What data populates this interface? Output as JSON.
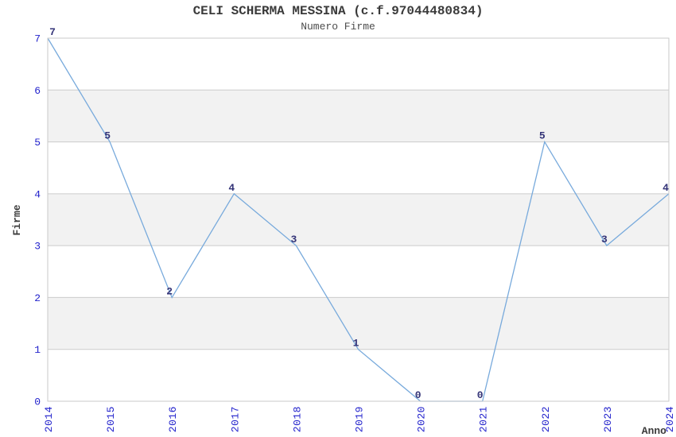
{
  "chart_data": {
    "type": "line",
    "title": "CELI SCHERMA MESSINA (c.f.97044480834)",
    "subtitle": "Numero Firme",
    "xlabel": "Anno",
    "ylabel": "Firme",
    "categories": [
      "2014",
      "2015",
      "2016",
      "2017",
      "2018",
      "2019",
      "2020",
      "2021",
      "2022",
      "2023",
      "2024"
    ],
    "values": [
      7,
      5,
      2,
      4,
      3,
      1,
      0,
      0,
      5,
      3,
      4
    ],
    "ylim": [
      0,
      7
    ],
    "yticks": [
      0,
      1,
      2,
      3,
      4,
      5,
      6,
      7
    ],
    "grid": true,
    "legend_position": "none",
    "band_intervals": [
      [
        1,
        2
      ],
      [
        3,
        4
      ],
      [
        5,
        6
      ]
    ],
    "style": {
      "line_color": "#78aadc",
      "band_color": "#f2f2f2",
      "grid_color": "#cccccc",
      "frame_color": "#c9c9c9",
      "tick_label_color": "#2222cc",
      "point_label_color": "#333377",
      "title_color": "#3a3a3a",
      "subtitle_color": "#4d4d4d",
      "axis_label_color": "#3a3a3a",
      "background": "#ffffff"
    }
  }
}
